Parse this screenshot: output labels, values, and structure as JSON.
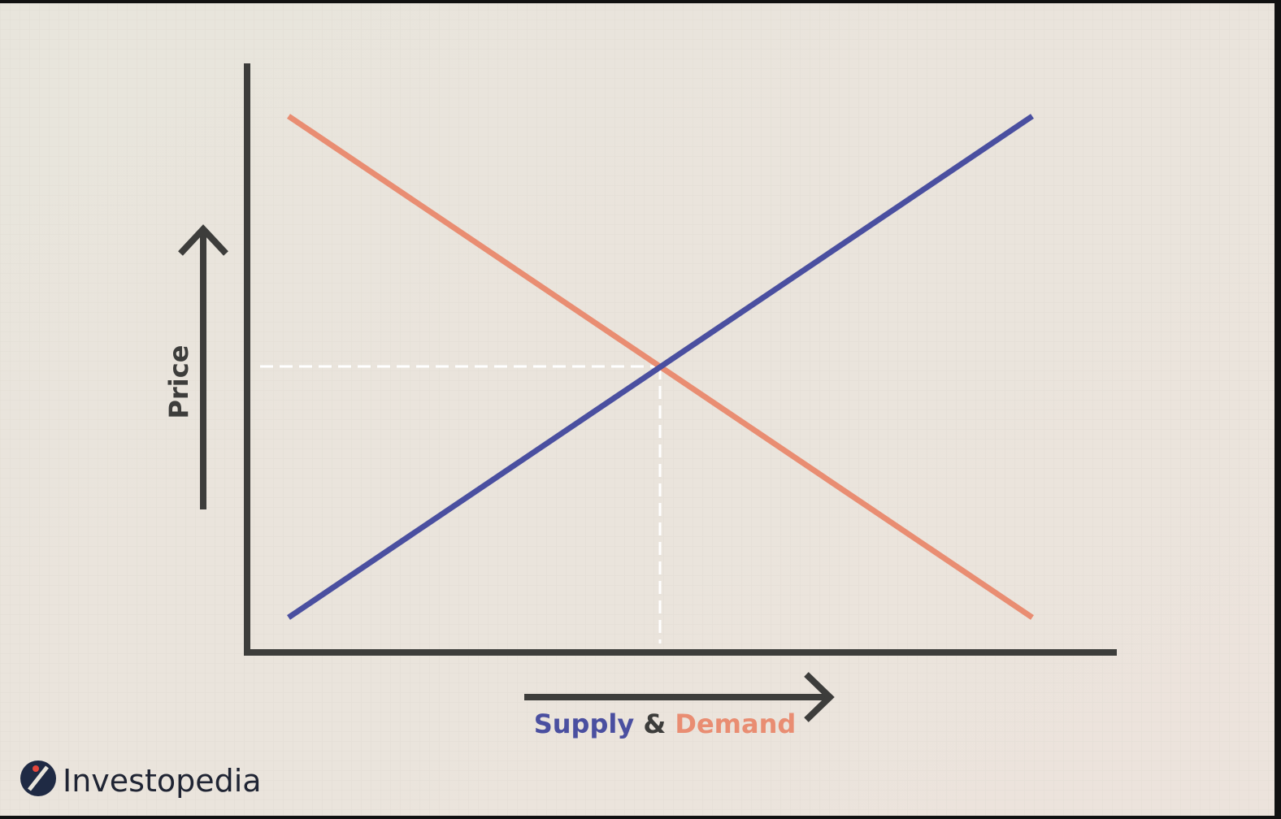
{
  "y_axis_label": "Price",
  "x_axis_label": {
    "supply": "Supply",
    "and": "&",
    "demand": "Demand"
  },
  "logo": "Investopedia"
}
